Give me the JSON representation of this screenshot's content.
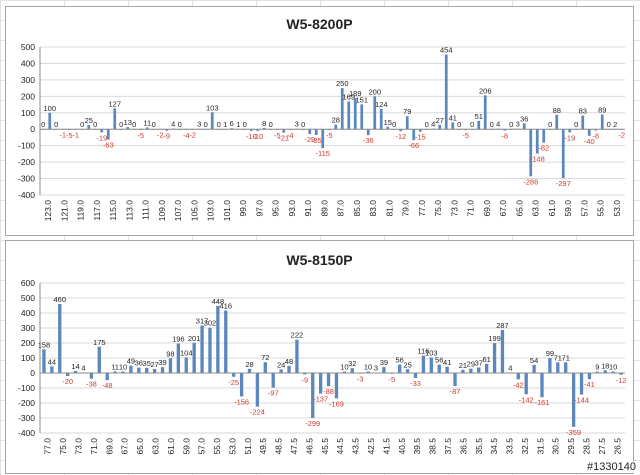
{
  "watermark": "#1330140",
  "chart_data": [
    {
      "type": "bar",
      "title": "W5-8200P",
      "ylim": [
        -400,
        500
      ],
      "yticks": [
        -400,
        -300,
        -200,
        -100,
        0,
        100,
        200,
        300,
        400,
        500
      ],
      "grid": true,
      "legend": "none",
      "x_tick_labels": [
        "123.0",
        "121.0",
        "119.0",
        "117.0",
        "115.0",
        "113.0",
        "111.0",
        "109.0",
        "107.0",
        "105.0",
        "103.0",
        "101.0",
        "99.0",
        "97.0",
        "95.0",
        "93.0",
        "91.0",
        "89.0",
        "87.0",
        "85.0",
        "83.0",
        "81.0",
        "79.0",
        "77.0",
        "75.0",
        "73.0",
        "71.0",
        "69.0",
        "67.0",
        "65.0",
        "63.0",
        "61.0",
        "59.0",
        "57.0",
        "55.0",
        "53.0"
      ],
      "values": [
        0,
        100,
        0,
        -1,
        -5,
        -1,
        0,
        25,
        0,
        -19,
        -63,
        127,
        0,
        13,
        0,
        -5,
        11,
        0,
        -2,
        -9,
        4,
        0,
        -4,
        -2,
        3,
        0,
        103,
        0,
        1,
        6,
        1,
        0,
        -10,
        -10,
        8,
        0,
        -5,
        -21,
        -4,
        3,
        0,
        -29,
        -35,
        -115,
        -5,
        28,
        250,
        169,
        189,
        151,
        -36,
        200,
        124,
        15,
        0,
        -12,
        79,
        -66,
        -15,
        0,
        4,
        27,
        454,
        41,
        0,
        -5,
        0,
        51,
        206,
        0,
        4,
        -8,
        0,
        3,
        36,
        -286,
        -148,
        -82,
        0,
        88,
        -297,
        -19,
        0,
        83,
        -40,
        -8,
        89,
        0,
        2,
        -2
      ],
      "color_pos": "#5b87bd",
      "color_neg": "#5b87bd",
      "label_color_pos": "#1f1f1f",
      "label_color_neg": "#d33a2c"
    },
    {
      "type": "bar",
      "title": "W5-8150P",
      "ylim": [
        -400,
        600
      ],
      "yticks": [
        -400,
        -300,
        -200,
        -100,
        0,
        100,
        200,
        300,
        400,
        500,
        600
      ],
      "grid": true,
      "legend": "none",
      "x_tick_labels": [
        "77.0",
        "75.0",
        "73.0",
        "71.0",
        "69.0",
        "67.0",
        "65.0",
        "63.0",
        "61.0",
        "59.0",
        "57.0",
        "55.0",
        "53.0",
        "51.0",
        "49.5",
        "48.5",
        "47.5",
        "46.5",
        "45.5",
        "44.5",
        "43.5",
        "42.5",
        "41.5",
        "40.5",
        "39.5",
        "38.5",
        "37.5",
        "36.5",
        "35.5",
        "34.5",
        "33.5",
        "32.5",
        "31.5",
        "30.5",
        "29.5",
        "28.5",
        "27.5",
        "26.5"
      ],
      "values": [
        158,
        44,
        460,
        -20,
        14,
        4,
        -38,
        175,
        -48,
        11,
        10,
        49,
        36,
        35,
        27,
        39,
        98,
        196,
        104,
        201,
        317,
        302,
        448,
        416,
        -25,
        -156,
        28,
        -224,
        72,
        -97,
        24,
        48,
        222,
        -9,
        -299,
        -137,
        -88,
        -169,
        10,
        32,
        -3,
        10,
        3,
        39,
        -5,
        56,
        25,
        -33,
        116,
        103,
        56,
        41,
        -87,
        21,
        29,
        37,
        61,
        199,
        287,
        4,
        -42,
        -142,
        54,
        -161,
        99,
        71,
        71,
        -359,
        -144,
        -41,
        9,
        18,
        10,
        -12
      ],
      "color_pos": "#5b87bd",
      "color_neg": "#5b87bd",
      "label_color_pos": "#1f1f1f",
      "label_color_neg": "#d33a2c"
    }
  ]
}
